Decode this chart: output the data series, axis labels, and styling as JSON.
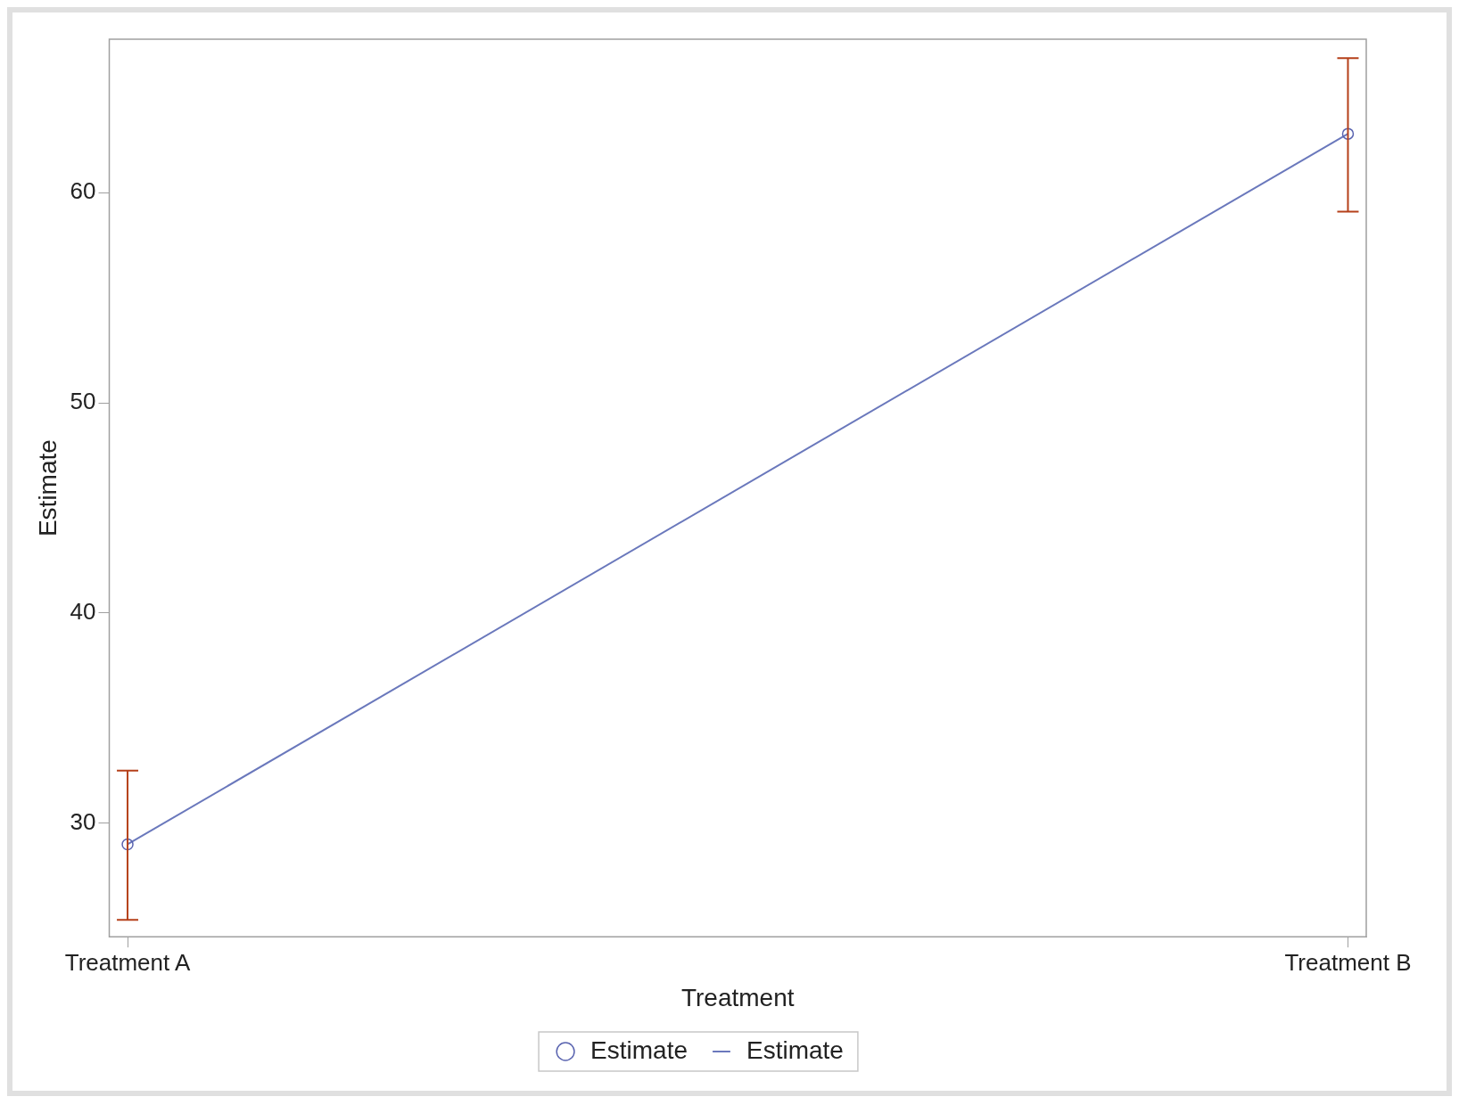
{
  "chart_data": {
    "type": "line",
    "xlabel": "Treatment",
    "ylabel": "Estimate",
    "categories": [
      "Treatment A",
      "Treatment B"
    ],
    "ylim": [
      24.6,
      67.3
    ],
    "yticks": [
      30,
      40,
      50,
      60
    ],
    "grid": false,
    "legend": "bottom",
    "series": [
      {
        "name": "Estimate",
        "type": "scatter",
        "marker": "circle",
        "color": "#5a64b0",
        "values": [
          29.0,
          62.8
        ],
        "errors": [
          [
            25.4,
            32.5
          ],
          [
            59.1,
            66.4
          ]
        ]
      },
      {
        "name": "Estimate",
        "type": "line",
        "marker": "none",
        "line_style": "solid",
        "color": "#6a78bc",
        "values": [
          29.0,
          62.8
        ]
      }
    ]
  }
}
